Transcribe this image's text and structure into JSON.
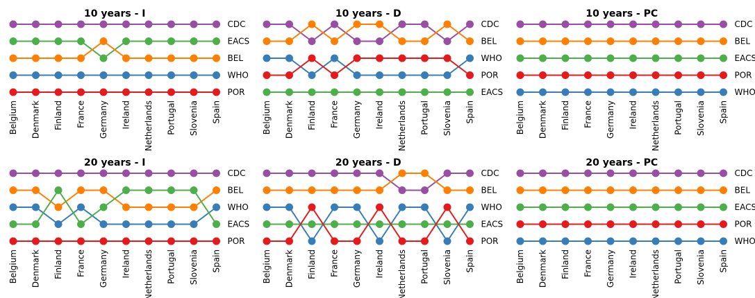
{
  "colors": {
    "CDC": "#984ea3",
    "BEL": "#ff7f00",
    "EACS": "#4daf4a",
    "WHO": "#377eb8",
    "POR": "#e41a1c"
  },
  "chart_data": [
    {
      "type": "line",
      "title": "10 years - I",
      "categories": [
        "Belgium",
        "Denmark",
        "Finland",
        "France",
        "Germany",
        "Ireland",
        "Netherlands",
        "Portugal",
        "Slovenia",
        "Spain"
      ],
      "rank_order": [
        "CDC",
        "EACS",
        "BEL",
        "WHO",
        "POR"
      ],
      "series": [
        {
          "name": "CDC",
          "ranks": [
            1,
            1,
            1,
            1,
            1,
            1,
            1,
            1,
            1,
            1
          ]
        },
        {
          "name": "EACS",
          "ranks": [
            2,
            2,
            2,
            2,
            3,
            2,
            2,
            2,
            2,
            2
          ]
        },
        {
          "name": "BEL",
          "ranks": [
            3,
            3,
            3,
            3,
            2,
            3,
            3,
            3,
            3,
            3
          ]
        },
        {
          "name": "WHO",
          "ranks": [
            4,
            4,
            4,
            4,
            4,
            4,
            4,
            4,
            4,
            4
          ]
        },
        {
          "name": "POR",
          "ranks": [
            5,
            5,
            5,
            5,
            5,
            5,
            5,
            5,
            5,
            5
          ]
        }
      ]
    },
    {
      "type": "line",
      "title": "10 years - D",
      "categories": [
        "Belgium",
        "Denmark",
        "Finland",
        "France",
        "Germany",
        "Ireland",
        "Netherlands",
        "Portugal",
        "Slovenia",
        "Spain"
      ],
      "rank_order": [
        "CDC",
        "BEL",
        "WHO",
        "POR",
        "EACS"
      ],
      "series": [
        {
          "name": "CDC",
          "ranks": [
            1,
            1,
            2,
            1,
            2,
            2,
            1,
            1,
            2,
            1
          ]
        },
        {
          "name": "BEL",
          "ranks": [
            2,
            2,
            1,
            2,
            1,
            1,
            2,
            2,
            1,
            2
          ]
        },
        {
          "name": "WHO",
          "ranks": [
            3,
            3,
            4,
            3,
            4,
            4,
            4,
            4,
            4,
            3
          ]
        },
        {
          "name": "POR",
          "ranks": [
            4,
            4,
            3,
            4,
            3,
            3,
            3,
            3,
            3,
            4
          ]
        },
        {
          "name": "EACS",
          "ranks": [
            5,
            5,
            5,
            5,
            5,
            5,
            5,
            5,
            5,
            5
          ]
        }
      ]
    },
    {
      "type": "line",
      "title": "10 years - PC",
      "categories": [
        "Belgium",
        "Denmark",
        "Finland",
        "France",
        "Germany",
        "Ireland",
        "Netherlands",
        "Portugal",
        "Slovenia",
        "Spain"
      ],
      "rank_order": [
        "CDC",
        "BEL",
        "EACS",
        "POR",
        "WHO"
      ],
      "series": [
        {
          "name": "CDC",
          "ranks": [
            1,
            1,
            1,
            1,
            1,
            1,
            1,
            1,
            1,
            1
          ]
        },
        {
          "name": "BEL",
          "ranks": [
            2,
            2,
            2,
            2,
            2,
            2,
            2,
            2,
            2,
            2
          ]
        },
        {
          "name": "EACS",
          "ranks": [
            3,
            3,
            3,
            3,
            3,
            3,
            3,
            3,
            3,
            3
          ]
        },
        {
          "name": "POR",
          "ranks": [
            4,
            4,
            4,
            4,
            4,
            4,
            4,
            4,
            4,
            4
          ]
        },
        {
          "name": "WHO",
          "ranks": [
            5,
            5,
            5,
            5,
            5,
            5,
            5,
            5,
            5,
            5
          ]
        }
      ]
    },
    {
      "type": "line",
      "title": "20 years - I",
      "categories": [
        "Belgium",
        "Denmark",
        "Finland",
        "France",
        "Germany",
        "Ireland",
        "Netherlands",
        "Portugal",
        "Slovenia",
        "Spain"
      ],
      "rank_order": [
        "CDC",
        "BEL",
        "WHO",
        "EACS",
        "POR"
      ],
      "series": [
        {
          "name": "CDC",
          "ranks": [
            1,
            1,
            1,
            1,
            1,
            1,
            1,
            1,
            1,
            1
          ]
        },
        {
          "name": "BEL",
          "ranks": [
            2,
            2,
            3,
            2,
            2,
            3,
            3,
            3,
            3,
            2
          ]
        },
        {
          "name": "WHO",
          "ranks": [
            3,
            3,
            4,
            3,
            4,
            4,
            4,
            4,
            4,
            3
          ]
        },
        {
          "name": "EACS",
          "ranks": [
            4,
            4,
            2,
            4,
            3,
            2,
            2,
            2,
            2,
            4
          ]
        },
        {
          "name": "POR",
          "ranks": [
            5,
            5,
            5,
            5,
            5,
            5,
            5,
            5,
            5,
            5
          ]
        }
      ]
    },
    {
      "type": "line",
      "title": "20 years - D",
      "categories": [
        "Belgium",
        "Denmark",
        "Finland",
        "France",
        "Germany",
        "Ireland",
        "Netherlands",
        "Portugal",
        "Slovenia",
        "Spain"
      ],
      "rank_order": [
        "CDC",
        "BEL",
        "WHO",
        "EACS",
        "POR"
      ],
      "series": [
        {
          "name": "CDC",
          "ranks": [
            1,
            1,
            1,
            1,
            1,
            1,
            2,
            2,
            1,
            1
          ]
        },
        {
          "name": "BEL",
          "ranks": [
            2,
            2,
            2,
            2,
            2,
            2,
            1,
            1,
            2,
            2
          ]
        },
        {
          "name": "WHO",
          "ranks": [
            3,
            3,
            5,
            3,
            3,
            5,
            3,
            3,
            5,
            3
          ]
        },
        {
          "name": "EACS",
          "ranks": [
            4,
            4,
            4,
            4,
            4,
            4,
            4,
            4,
            4,
            4
          ]
        },
        {
          "name": "POR",
          "ranks": [
            5,
            5,
            3,
            5,
            5,
            3,
            5,
            5,
            3,
            5
          ]
        }
      ]
    },
    {
      "type": "line",
      "title": "20 years - PC",
      "categories": [
        "Belgium",
        "Denmark",
        "Finland",
        "France",
        "Germany",
        "Ireland",
        "Netherlands",
        "Portugal",
        "Slovenia",
        "Spain"
      ],
      "rank_order": [
        "CDC",
        "BEL",
        "EACS",
        "POR",
        "WHO"
      ],
      "series": [
        {
          "name": "CDC",
          "ranks": [
            1,
            1,
            1,
            1,
            1,
            1,
            1,
            1,
            1,
            1
          ]
        },
        {
          "name": "BEL",
          "ranks": [
            2,
            2,
            2,
            2,
            2,
            2,
            2,
            2,
            2,
            2
          ]
        },
        {
          "name": "EACS",
          "ranks": [
            3,
            3,
            3,
            3,
            3,
            3,
            3,
            3,
            3,
            3
          ]
        },
        {
          "name": "POR",
          "ranks": [
            4,
            4,
            4,
            4,
            4,
            4,
            4,
            4,
            4,
            4
          ]
        },
        {
          "name": "WHO",
          "ranks": [
            5,
            5,
            5,
            5,
            5,
            5,
            5,
            5,
            5,
            5
          ]
        }
      ]
    }
  ]
}
